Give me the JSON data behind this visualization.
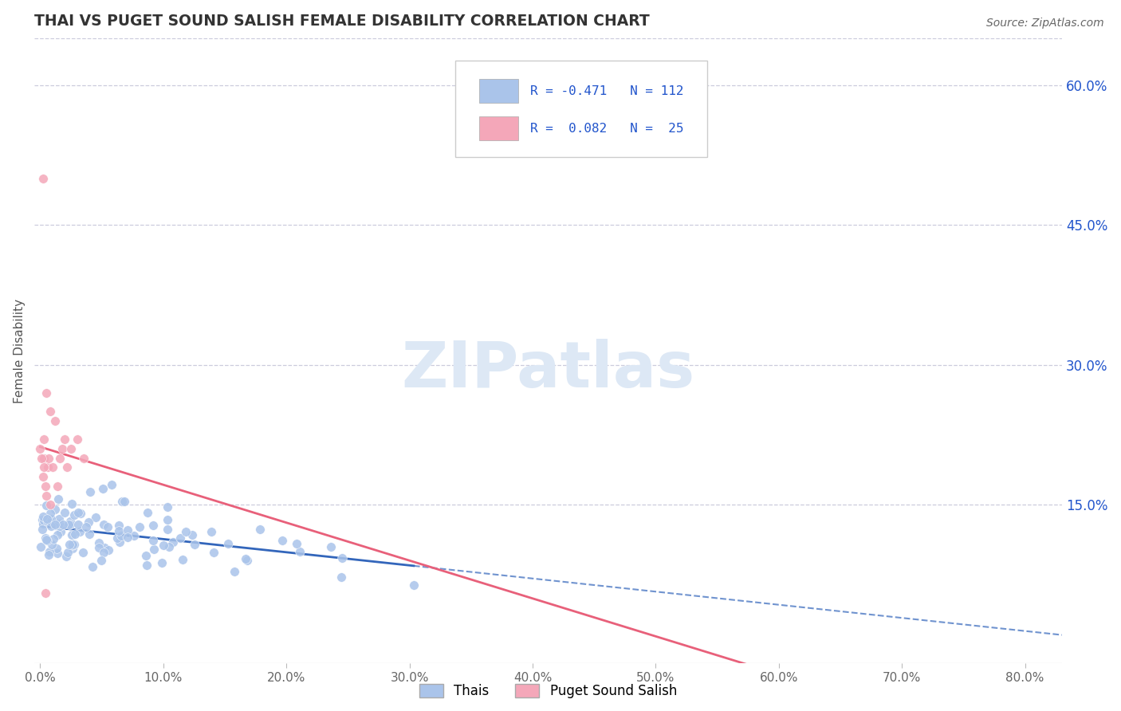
{
  "title": "THAI VS PUGET SOUND SALISH FEMALE DISABILITY CORRELATION CHART",
  "source_text": "Source: ZipAtlas.com",
  "ylabel": "Female Disability",
  "x_ticks": [
    0.0,
    0.1,
    0.2,
    0.3,
    0.4,
    0.5,
    0.6,
    0.7,
    0.8
  ],
  "x_tick_labels": [
    "0.0%",
    "10.0%",
    "20.0%",
    "30.0%",
    "40.0%",
    "50.0%",
    "60.0%",
    "70.0%",
    "80.0%"
  ],
  "y_ticks": [
    0.15,
    0.3,
    0.45,
    0.6
  ],
  "y_tick_labels": [
    "15.0%",
    "30.0%",
    "45.0%",
    "60.0%"
  ],
  "xlim": [
    -0.005,
    0.83
  ],
  "ylim": [
    -0.02,
    0.65
  ],
  "thai_R": -0.471,
  "thai_N": 112,
  "salish_R": 0.082,
  "salish_N": 25,
  "thai_color": "#aac4ea",
  "salish_color": "#f4a7b9",
  "thai_line_color": "#3366bb",
  "salish_line_color": "#e8607a",
  "background_color": "#ffffff",
  "grid_color": "#ccccdd",
  "legend_R_color": "#2255cc",
  "title_color": "#333333",
  "watermark_color": "#dde8f5",
  "legend_label_1": "Thais",
  "legend_label_2": "Puget Sound Salish"
}
